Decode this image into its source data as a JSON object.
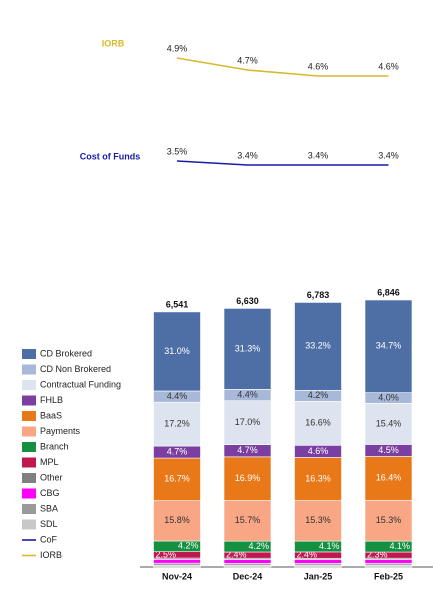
{
  "chart_data": {
    "type": "bar",
    "stacked": true,
    "legend": "left",
    "categories": [
      "Nov-24",
      "Dec-24",
      "Jan-25",
      "Feb-25"
    ],
    "totals": {
      "values": [
        6541,
        6630,
        6783,
        6846
      ],
      "value_labels": [
        "6,541",
        "6,630",
        "6,783",
        "6,846"
      ]
    },
    "series": [
      {
        "name": "SDL",
        "color": "#c8c8c8",
        "values": [
          0.7,
          0.7,
          0.7,
          0.7
        ]
      },
      {
        "name": "SBA",
        "color": "#9a9a9a",
        "values": [
          0.8,
          0.7,
          0.7,
          0.7
        ]
      },
      {
        "name": "CBG",
        "color": "#ff00ff",
        "values": [
          1.5,
          1.5,
          1.4,
          1.4
        ]
      },
      {
        "name": "Other",
        "color": "#808080",
        "values": [
          0.5,
          0.5,
          0.5,
          0.5
        ]
      },
      {
        "name": "MPL",
        "color": "#c0174e",
        "values": [
          2.5,
          2.4,
          2.4,
          2.3
        ],
        "value_labels": [
          "2.5%",
          "2.4%",
          "2.4%",
          "2.3%"
        ]
      },
      {
        "name": "Branch",
        "color": "#159040",
        "values": [
          4.2,
          4.2,
          4.1,
          4.1
        ],
        "value_labels": [
          "4.2%",
          "4.2%",
          "4.1%",
          "4.1%"
        ]
      },
      {
        "name": "Payments",
        "color": "#f8a684",
        "values": [
          15.8,
          15.7,
          15.3,
          15.3
        ],
        "value_labels": [
          "15.8%",
          "15.7%",
          "15.3%",
          "15.3%"
        ]
      },
      {
        "name": "BaaS",
        "color": "#e87818",
        "values": [
          16.7,
          16.9,
          16.3,
          16.4
        ],
        "value_labels": [
          "16.7%",
          "16.9%",
          "16.3%",
          "16.4%"
        ]
      },
      {
        "name": "FHLB",
        "color": "#7a3fa0",
        "values": [
          4.7,
          4.7,
          4.6,
          4.5
        ],
        "value_labels": [
          "4.7%",
          "4.7%",
          "4.6%",
          "4.5%"
        ]
      },
      {
        "name": "Contractual Funding",
        "color": "#dde3ef",
        "values": [
          17.2,
          17.0,
          16.6,
          15.4
        ],
        "value_labels": [
          "17.2%",
          "17.0%",
          "16.6%",
          "15.4%"
        ]
      },
      {
        "name": "CD Non Brokered",
        "color": "#a7b8d9",
        "values": [
          4.4,
          4.4,
          4.2,
          4.0
        ],
        "value_labels": [
          "4.4%",
          "4.4%",
          "4.2%",
          "4.0%"
        ]
      },
      {
        "name": "CD Brokered",
        "color": "#4e6fa6",
        "values": [
          31.0,
          31.3,
          33.2,
          34.7
        ],
        "value_labels": [
          "31.0%",
          "31.3%",
          "33.2%",
          "34.7%"
        ]
      }
    ],
    "lines": [
      {
        "name": "Cost of Funds",
        "legend_name": "CoF",
        "color": "#1a1aa8",
        "values": [
          3.5,
          3.4,
          3.4,
          3.4
        ],
        "value_labels": [
          "3.5%",
          "3.4%",
          "3.4%",
          "3.4%"
        ]
      },
      {
        "name": "IORB",
        "color": "#d9b92c",
        "values": [
          4.9,
          4.7,
          4.6,
          4.6
        ],
        "value_labels": [
          "4.9%",
          "4.7%",
          "4.6%",
          "4.6%"
        ]
      }
    ]
  }
}
